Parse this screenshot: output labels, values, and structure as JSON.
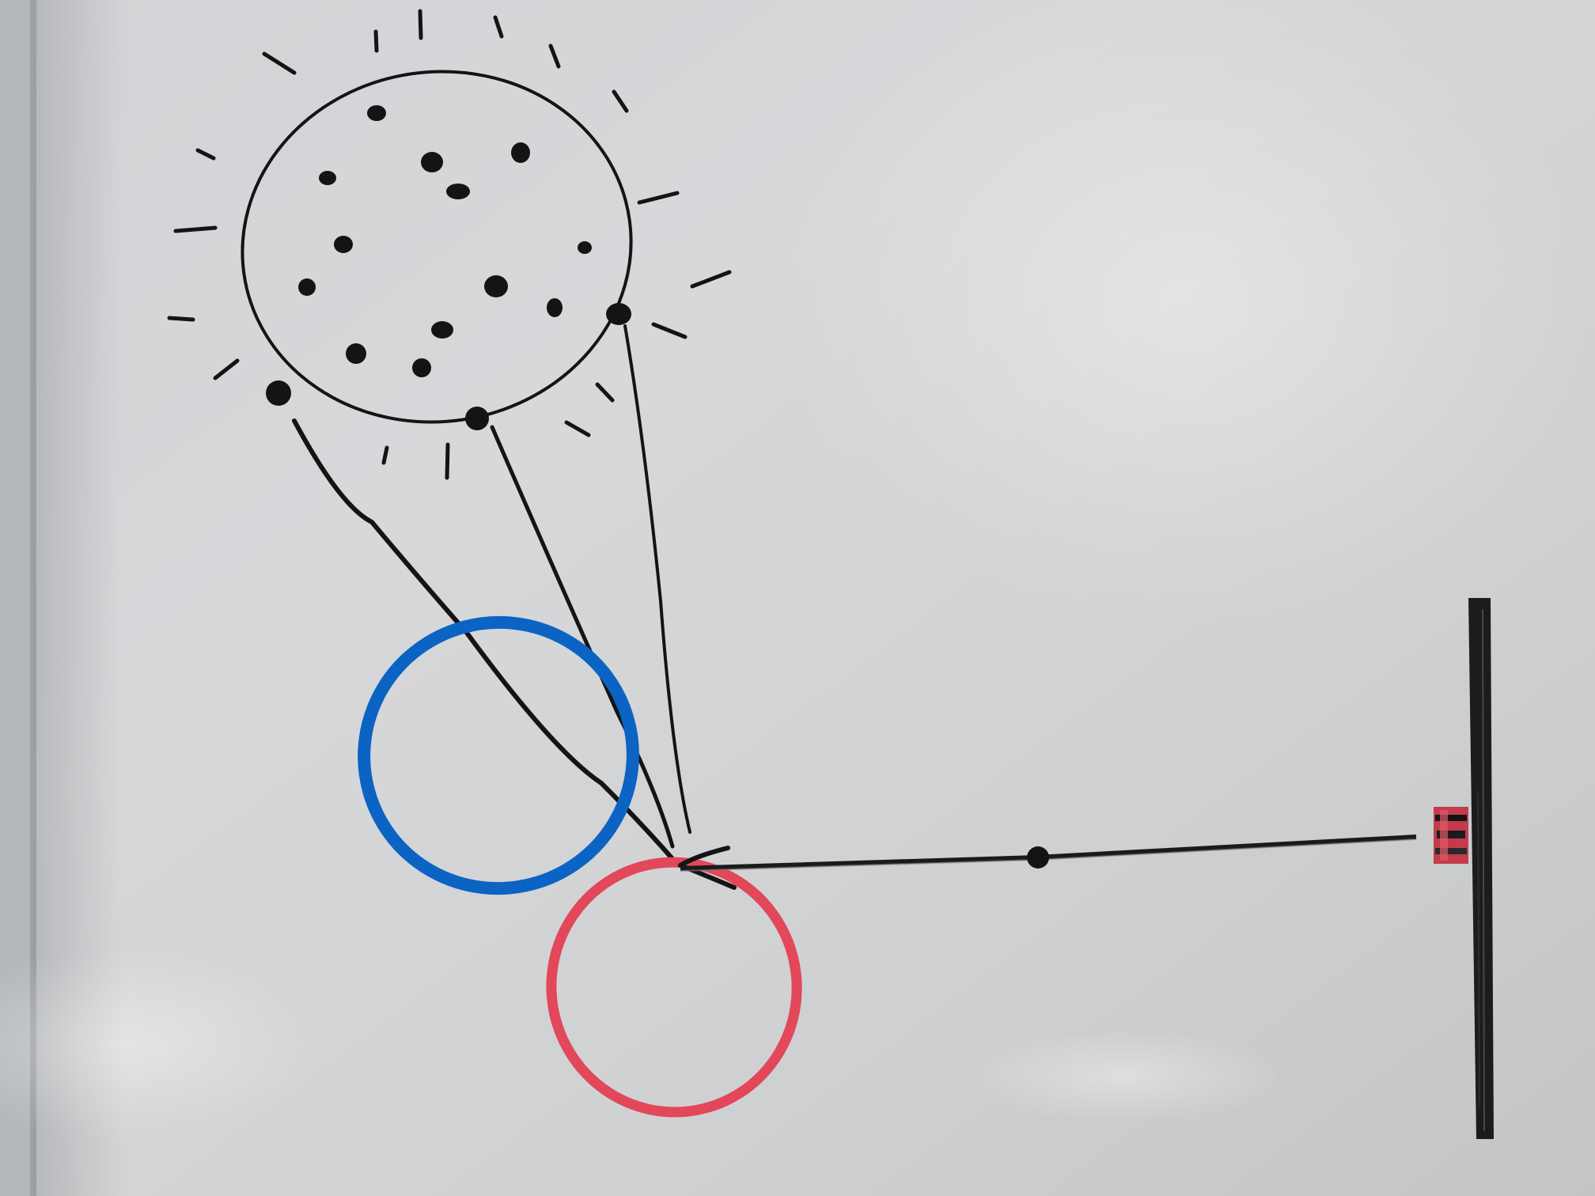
{
  "photo": {
    "subject": "",
    "colors": {
      "board": "#d4d5d7",
      "board_shade": "#b9bbbe",
      "frame": "#a6a9ac",
      "ink_black": "#141414",
      "ink_blue": "#0b63c4",
      "ink_red": "#e2475a"
    }
  }
}
